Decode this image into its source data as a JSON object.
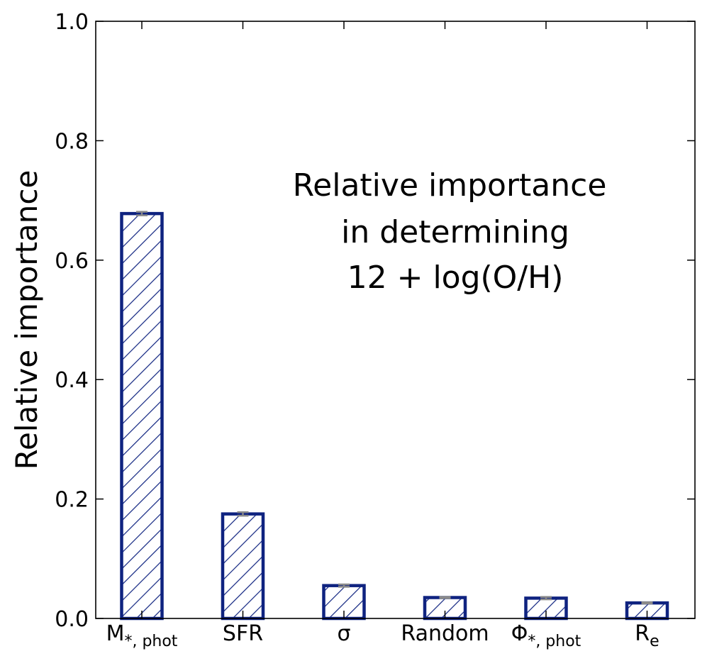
{
  "chart_data": {
    "type": "bar",
    "categories": [
      {
        "base": "M",
        "sub": "*, phot"
      },
      {
        "base": "SFR",
        "sub": ""
      },
      {
        "base": "σ",
        "sub": ""
      },
      {
        "base": "Random",
        "sub": ""
      },
      {
        "base": "Φ",
        "sub": "*, phot"
      },
      {
        "base": "R",
        "sub": "e"
      }
    ],
    "values": [
      0.678,
      0.175,
      0.055,
      0.035,
      0.034,
      0.026
    ],
    "errors": [
      0.003,
      0.003,
      0.002,
      0.001,
      0.002,
      0.001
    ],
    "ylabel": "Relative importance",
    "xlabel": "",
    "ylim": [
      0.0,
      1.0
    ],
    "yticks": [
      "0.0",
      "0.2",
      "0.4",
      "0.6",
      "0.8",
      "1.0"
    ],
    "annotation": [
      "Relative importance",
      "in determining",
      "12 + log(O/H)"
    ],
    "bar_edge_color": "#0f2380",
    "hatch_color": "#0f2380",
    "error_color": "#8a8a8a",
    "grid": false
  }
}
